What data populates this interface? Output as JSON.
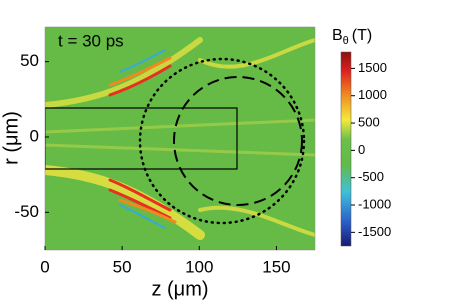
{
  "chart_data": {
    "type": "heatmap",
    "annotation": "t = 30 ps",
    "xlabel": "z (μm)",
    "ylabel": "r (μm)",
    "xlim": [
      0,
      175
    ],
    "xticks": [
      0,
      50,
      100,
      150
    ],
    "ylim": [
      -75,
      73
    ],
    "yticks": [
      -50,
      0,
      50
    ],
    "colorbar_label": [
      "B",
      "θ",
      "(T)"
    ],
    "clim": [
      -1750,
      1800
    ],
    "cticks": [
      -1500,
      -1000,
      -500,
      0,
      500,
      1000,
      1500
    ]
  }
}
